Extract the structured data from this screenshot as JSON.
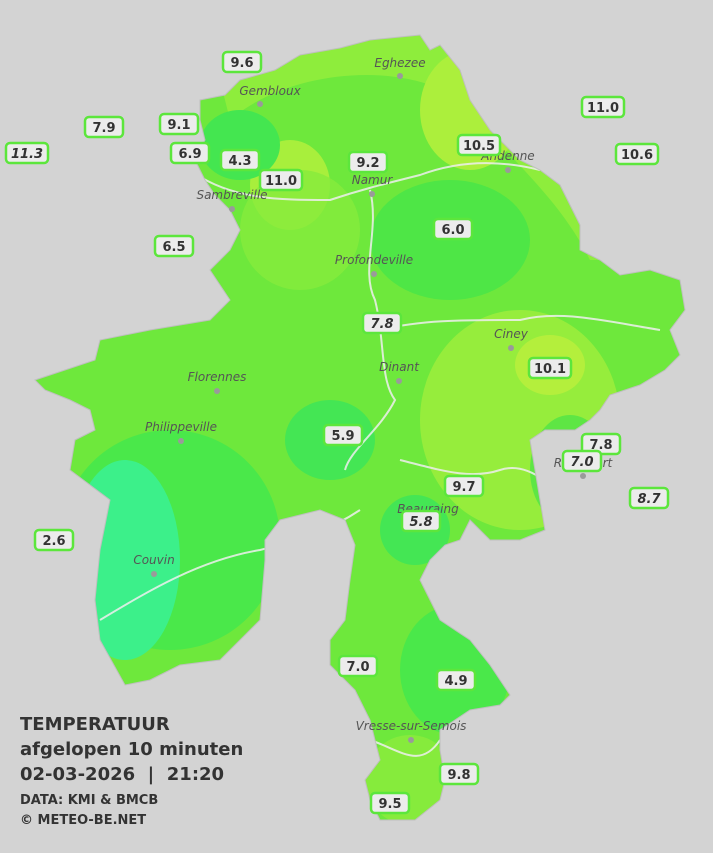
{
  "legend": {
    "title": "TEMPERATUUR",
    "subtitle": "afgelopen 10 minuten",
    "datetime": "02-03-2026  |  21:20",
    "source": "DATA: KMI & BMCB",
    "credit": "© METEO-BE.NET"
  },
  "cities": [
    "Eghezee",
    "Gembloux",
    "Andenne",
    "Namur",
    "Sambreville",
    "Profondeville",
    "Ciney",
    "Dinant",
    "Florennes",
    "Philippeville",
    "Rochefort",
    "Beauraing",
    "Couvin",
    "Vresse-sur-Semois"
  ],
  "stations": [
    "9.6",
    "7.9",
    "9.1",
    "11.3",
    "6.9",
    "4.3",
    "11.0",
    "9.2",
    "10.5",
    "11.0",
    "10.6",
    "6.0",
    "6.5",
    "7.8",
    "10.1",
    "5.9",
    "7.8",
    "7.0",
    "9.7",
    "8.7",
    "5.8",
    "2.6",
    "7.0",
    "4.9",
    "9.8",
    "9.5"
  ]
}
